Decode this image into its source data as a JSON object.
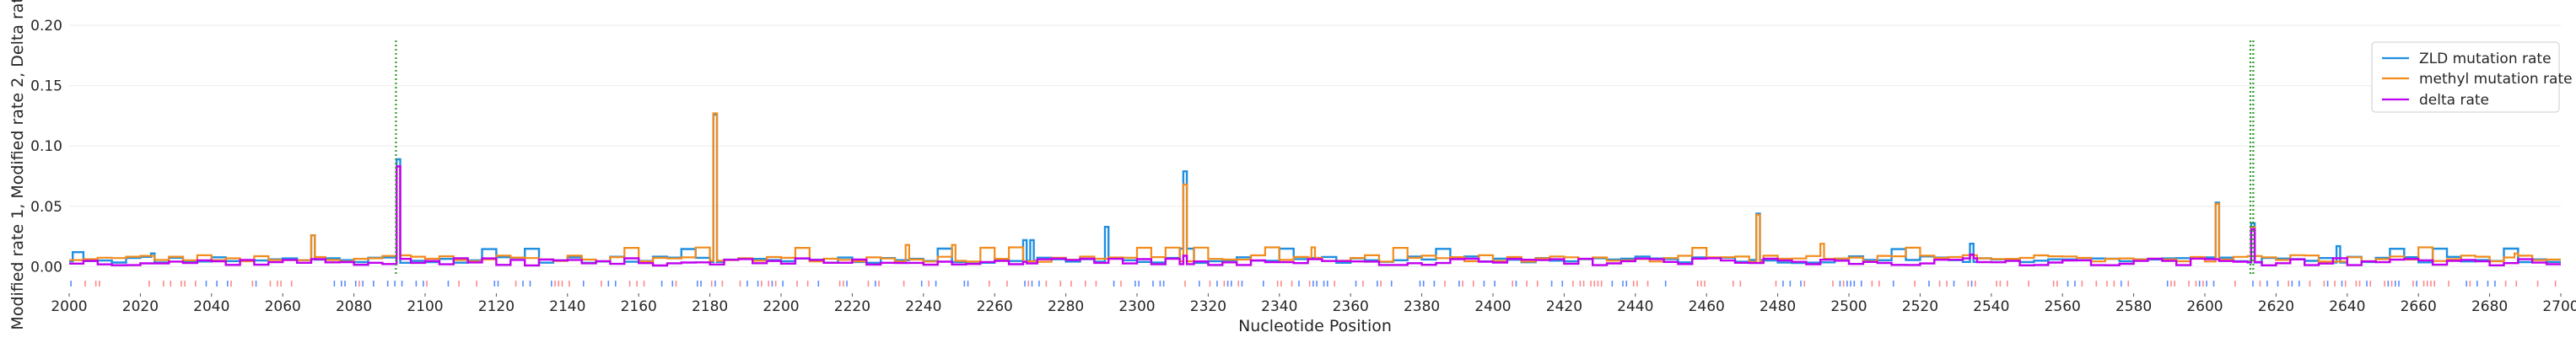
{
  "chart_data": {
    "type": "line",
    "xlabel": "Nucleotide Position",
    "ylabel": "Modified rate 1, Modified rate 2, Delta rate",
    "xlim": [
      2000,
      2700
    ],
    "ylim": [
      -0.006,
      0.2
    ],
    "x_ticks": [
      2000,
      2020,
      2040,
      2060,
      2080,
      2100,
      2120,
      2140,
      2160,
      2180,
      2200,
      2220,
      2240,
      2260,
      2280,
      2300,
      2320,
      2340,
      2360,
      2380,
      2400,
      2420,
      2440,
      2460,
      2480,
      2500,
      2520,
      2540,
      2560,
      2580,
      2600,
      2620,
      2640,
      2660,
      2680,
      2700
    ],
    "y_ticks": [
      0.0,
      0.05,
      0.1,
      0.15,
      0.2
    ],
    "y_tick_labels": [
      "0.00",
      "0.05",
      "0.10",
      "0.15",
      "0.20"
    ],
    "grid": true,
    "legend_position": "top-right",
    "series": [
      {
        "name": "ZLD mutation rate",
        "color": "#1f8fe0",
        "style": "step",
        "baseline": 0.003,
        "peaks": [
          [
            2001,
            0.012
          ],
          [
            2002,
            0.012
          ],
          [
            2003,
            0.012
          ],
          [
            2023,
            0.011
          ],
          [
            2068,
            0.026
          ],
          [
            2092,
            0.089
          ],
          [
            2181,
            0.126
          ],
          [
            2268,
            0.022
          ],
          [
            2270,
            0.022
          ],
          [
            2291,
            0.033
          ],
          [
            2313,
            0.079
          ],
          [
            2474,
            0.044
          ],
          [
            2534,
            0.019
          ],
          [
            2603,
            0.053
          ],
          [
            2613,
            0.036
          ],
          [
            2637,
            0.017
          ]
        ]
      },
      {
        "name": "methyl mutation rate",
        "color": "#f28c1c",
        "style": "step",
        "baseline": 0.004,
        "peaks": [
          [
            2068,
            0.026
          ],
          [
            2092,
            0.083
          ],
          [
            2181,
            0.127
          ],
          [
            2235,
            0.018
          ],
          [
            2248,
            0.018
          ],
          [
            2313,
            0.068
          ],
          [
            2349,
            0.016
          ],
          [
            2474,
            0.043
          ],
          [
            2492,
            0.019
          ],
          [
            2603,
            0.052
          ],
          [
            2613,
            0.033
          ],
          [
            2687,
            0.011
          ]
        ]
      },
      {
        "name": "delta rate",
        "color": "#c000f0",
        "style": "step",
        "baseline": 0.0,
        "peaks": [
          [
            2092,
            0.083
          ],
          [
            2268,
            0.004
          ],
          [
            2313,
            0.009
          ],
          [
            2534,
            0.01
          ],
          [
            2613,
            0.031
          ]
        ]
      }
    ],
    "marker_lines": [
      {
        "x": 2091.8,
        "color": "#2e9e2e",
        "style": "dotted"
      },
      {
        "x": 2612.8,
        "color": "#2e9e2e",
        "style": "dotted"
      },
      {
        "x": 2613.6,
        "color": "#2e9e2e",
        "style": "dotted"
      }
    ],
    "rug_colors": [
      "#ff8a8a",
      "#5a8cff"
    ]
  }
}
